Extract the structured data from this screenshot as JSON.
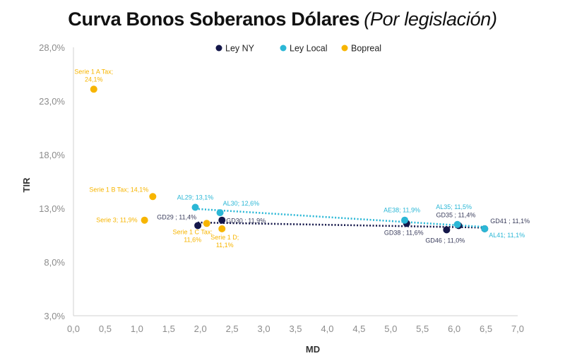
{
  "title": "Curva Bonos Soberanos Dólares",
  "subtitle": "(Por legislación)",
  "chart_data": {
    "type": "scatter",
    "title": "Curva Bonos Soberanos Dólares (Por legislación)",
    "xlabel": "MD",
    "ylabel": "TIR",
    "xlim": [
      0,
      7
    ],
    "ylim": [
      3,
      28
    ],
    "x_ticks": [
      "0,0",
      "0,5",
      "1,0",
      "1,5",
      "2,0",
      "2,5",
      "3,0",
      "3,5",
      "4,0",
      "4,5",
      "5,0",
      "5,5",
      "6,0",
      "6,5",
      "7,0"
    ],
    "y_ticks": [
      "28,0%",
      "23,0%",
      "18,0%",
      "13,0%",
      "8,0%",
      "3,0%"
    ],
    "grid": false,
    "legend_position": "top",
    "series": [
      {
        "name": "Ley NY",
        "color": "#14174a",
        "trendline": true,
        "points": [
          {
            "label": "GD29 ; 11,4%",
            "x": 1.96,
            "y": 11.4
          },
          {
            "label": "GD30 ; 11,9%",
            "x": 2.34,
            "y": 11.9
          },
          {
            "label": "GD38 ; 11,6%",
            "x": 5.25,
            "y": 11.6
          },
          {
            "label": "GD46 ; 11,0%",
            "x": 5.88,
            "y": 11.0
          },
          {
            "label": "GD35 ; 11,4%",
            "x": 6.07,
            "y": 11.4
          },
          {
            "label": "GD41 ; 11,1%",
            "x": 6.48,
            "y": 11.1
          }
        ]
      },
      {
        "name": "Ley Local",
        "color": "#2bb7d6",
        "trendline": true,
        "points": [
          {
            "label": "AL29; 13,1%",
            "x": 1.92,
            "y": 13.1
          },
          {
            "label": "AL30; 12,6%",
            "x": 2.31,
            "y": 12.6
          },
          {
            "label": "AE38; 11,9%",
            "x": 5.22,
            "y": 11.9
          },
          {
            "label": "AL35; 11,5%",
            "x": 6.05,
            "y": 11.5
          },
          {
            "label": "AL41; 11,1%",
            "x": 6.48,
            "y": 11.1
          }
        ]
      },
      {
        "name": "Bopreal",
        "color": "#f7b500",
        "trendline": false,
        "points": [
          {
            "label": "Serie 1 A Tax; 24,1%",
            "x": 0.32,
            "y": 24.1
          },
          {
            "label": "Serie 1 B Tax; 14,1%",
            "x": 1.25,
            "y": 14.1
          },
          {
            "label": "Serie 3; 11,9%",
            "x": 1.12,
            "y": 11.9
          },
          {
            "label": "Serie 1 C Tax; 11,6%",
            "x": 2.1,
            "y": 11.6
          },
          {
            "label": "Serie 1 D; 11,1%",
            "x": 2.34,
            "y": 11.1
          }
        ]
      }
    ]
  }
}
